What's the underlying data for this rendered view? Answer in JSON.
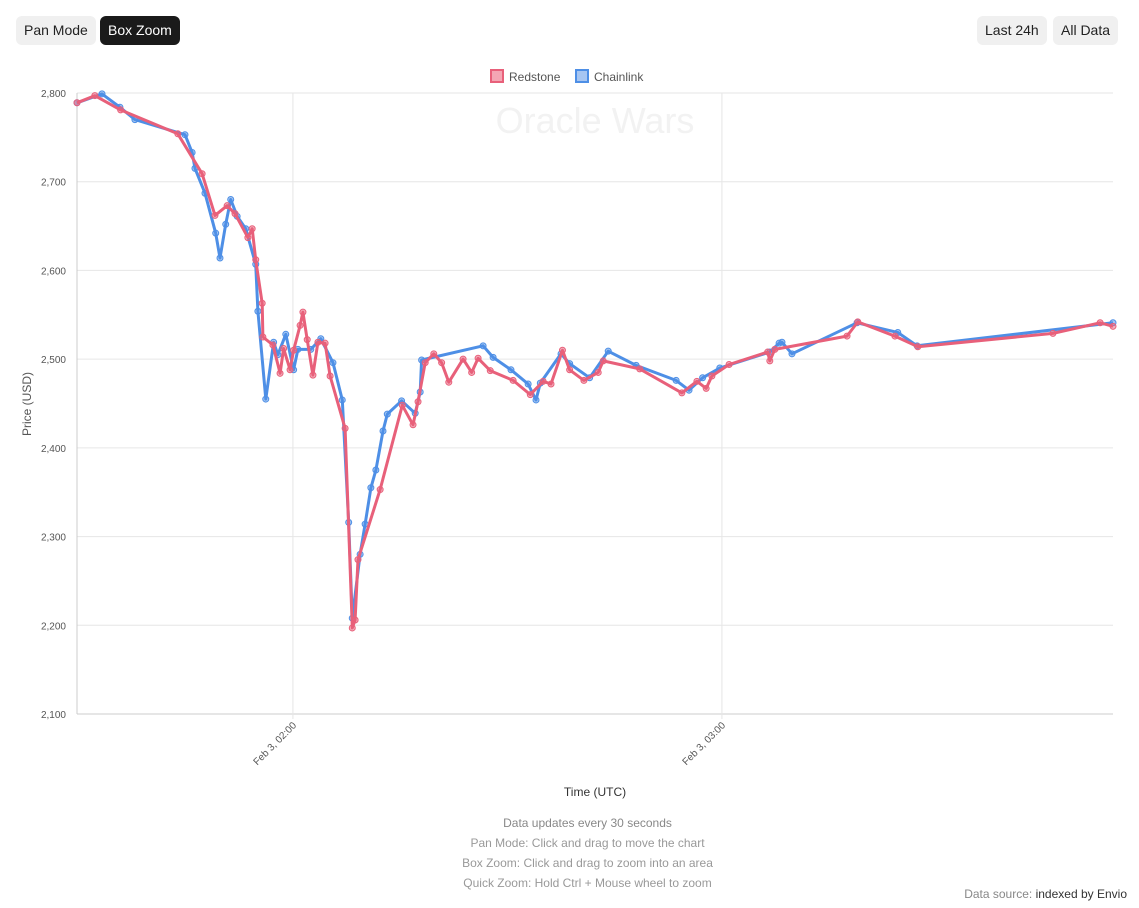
{
  "toolbar": {
    "pan_mode": "Pan Mode",
    "box_zoom": "Box Zoom",
    "last_24h": "Last 24h",
    "all_data": "All Data",
    "active": "Box Zoom"
  },
  "footer": {
    "update_note": "Data updates every 30 seconds",
    "pan_help": "Pan Mode: Click and drag to move the chart",
    "box_help": "Box Zoom: Click and drag to zoom into an area",
    "quick_help": "Quick Zoom: Hold Ctrl + Mouse wheel to zoom",
    "source_label": "Data source:",
    "source_value": "indexed by Envio"
  },
  "chart_data": {
    "type": "line",
    "title": "Oracle Wars",
    "xlabel": "Time (UTC)",
    "ylabel": "Price (USD)",
    "x_units": "minutes since Feb 3 00:00 UTC",
    "xlim": [
      89.8,
      234.7
    ],
    "ylim": [
      2100,
      2800
    ],
    "yticks": [
      2100,
      2200,
      2300,
      2400,
      2500,
      2600,
      2700,
      2800
    ],
    "ytick_labels": [
      "2,100",
      "2,200",
      "2,300",
      "2,400",
      "2,500",
      "2,600",
      "2,700",
      "2,800"
    ],
    "xticks": [
      120,
      180
    ],
    "xtick_labels": [
      "Feb 3, 02:00",
      "Feb 3, 03:00"
    ],
    "grid": true,
    "legend_position": "top-center",
    "series": [
      {
        "name": "Redstone",
        "color": "#e8607a",
        "x": [
          89.8,
          92.3,
          95.9,
          103.9,
          107.3,
          109.1,
          110.8,
          111.9,
          113.7,
          114.3,
          114.8,
          115.7,
          115.8,
          117.2,
          118.2,
          118.7,
          119.6,
          120.1,
          121.0,
          121.4,
          122.0,
          122.8,
          123.5,
          124.5,
          125.2,
          127.3,
          128.3,
          128.7,
          129.1,
          132.2,
          135.3,
          136.8,
          137.5,
          138.5,
          139.7,
          140.8,
          141.8,
          143.8,
          145.0,
          145.9,
          147.6,
          150.8,
          153.2,
          155.0,
          156.1,
          157.7,
          158.7,
          160.7,
          162.7,
          163.4,
          168.5,
          174.4,
          176.5,
          177.8,
          178.6,
          181.0,
          186.4,
          186.7,
          187.4,
          197.5,
          199.0,
          204.2,
          207.4,
          226.3,
          232.9,
          234.7
        ],
        "y": [
          2789,
          2797,
          2781,
          2754,
          2709,
          2662,
          2673,
          2664,
          2637,
          2647,
          2612,
          2563,
          2525,
          2516,
          2484,
          2512,
          2488,
          2510,
          2538,
          2553,
          2522,
          2482,
          2519,
          2518,
          2481,
          2422,
          2197,
          2206,
          2274,
          2353,
          2448,
          2426,
          2452,
          2496,
          2506,
          2496,
          2474,
          2500,
          2485,
          2501,
          2487,
          2476,
          2460,
          2475,
          2472,
          2510,
          2488,
          2476,
          2485,
          2498,
          2489,
          2462,
          2475,
          2467,
          2481,
          2494,
          2508,
          2498,
          2511,
          2526,
          2542,
          2526,
          2514,
          2529,
          2541,
          2537
        ]
      },
      {
        "name": "Chainlink",
        "color": "#4e8fe6",
        "x": [
          89.8,
          93.3,
          95.8,
          97.9,
          104.9,
          105.9,
          106.3,
          107.7,
          109.2,
          109.8,
          110.6,
          111.3,
          112.2,
          113.4,
          114.8,
          115.1,
          116.2,
          117.3,
          117.9,
          119.0,
          120.1,
          120.7,
          122.5,
          123.9,
          125.6,
          126.9,
          127.8,
          128.3,
          129.4,
          130.1,
          130.9,
          131.6,
          132.6,
          133.2,
          135.2,
          137.1,
          137.8,
          138.0,
          146.6,
          148.0,
          150.5,
          152.9,
          154.0,
          154.6,
          157.5,
          158.7,
          161.5,
          164.1,
          168.0,
          173.6,
          175.4,
          177.3,
          179.7,
          186.7,
          188.0,
          188.4,
          189.8,
          198.9,
          204.6,
          207.3,
          234.7
        ],
        "y": [
          2789,
          2799,
          2784,
          2770,
          2753,
          2733,
          2715,
          2687,
          2642,
          2614,
          2652,
          2680,
          2661,
          2647,
          2607,
          2554,
          2455,
          2519,
          2505,
          2528,
          2488,
          2511,
          2511,
          2523,
          2496,
          2454,
          2316,
          2208,
          2280,
          2314,
          2355,
          2375,
          2419,
          2438,
          2453,
          2439,
          2463,
          2499,
          2515,
          2502,
          2488,
          2472,
          2454,
          2473,
          2506,
          2495,
          2479,
          2509,
          2493,
          2476,
          2465,
          2479,
          2490,
          2508,
          2518,
          2519,
          2506,
          2541,
          2530,
          2515,
          2541
        ]
      }
    ]
  }
}
